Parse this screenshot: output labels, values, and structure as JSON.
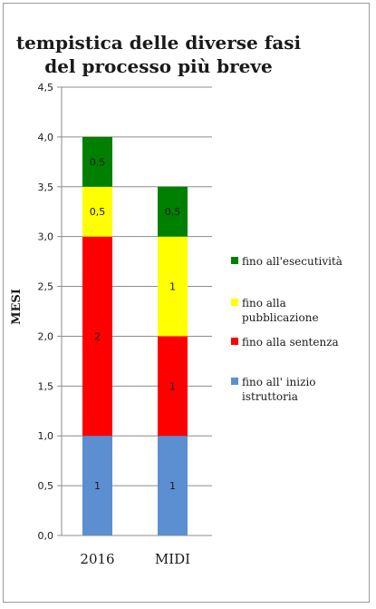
{
  "chart_data": {
    "type": "bar",
    "stacked": true,
    "title": [
      "tempistica delle diverse fasi",
      "del processo più breve"
    ],
    "ylabel": "MESI",
    "xlabel": "",
    "categories": [
      "2016",
      "MIDI"
    ],
    "ylim": [
      0,
      4.5
    ],
    "yticks": [
      "0,0",
      "0,5",
      "1,0",
      "1,5",
      "2,0",
      "2,5",
      "3,0",
      "3,5",
      "4,0",
      "4,5"
    ],
    "grid": true,
    "legend_position": "right",
    "series": [
      {
        "name": "fino all' inizio istruttoria",
        "values": [
          1,
          1
        ],
        "labels": [
          "1",
          "1"
        ],
        "color": "#5b8fd1"
      },
      {
        "name": "fino alla sentenza",
        "values": [
          2,
          1
        ],
        "labels": [
          "2",
          "1"
        ],
        "color": "#ff0000"
      },
      {
        "name": "fino alla pubblicazione",
        "values": [
          0.5,
          1
        ],
        "labels": [
          "0,5",
          "1"
        ],
        "color": "#ffff00"
      },
      {
        "name": "fino all'esecutività",
        "values": [
          0.5,
          0.5
        ],
        "labels": [
          "0,5",
          "0,5"
        ],
        "color": "#008000"
      }
    ],
    "legend_order": [
      3,
      2,
      1,
      0
    ]
  }
}
